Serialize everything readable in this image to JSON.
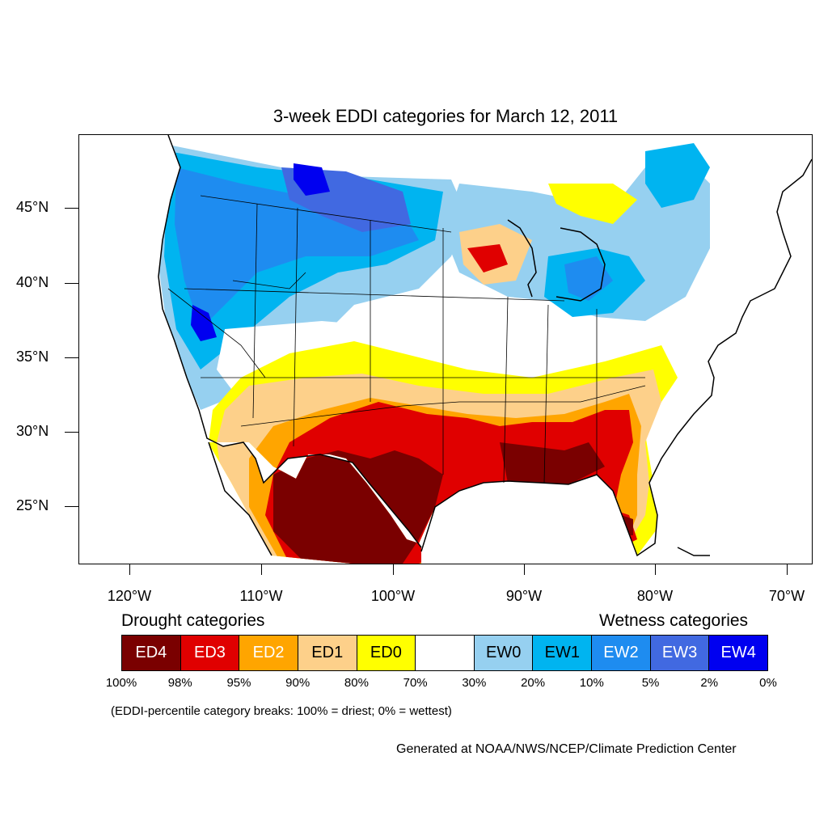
{
  "title": "3-week EDDI categories for March 12, 2011",
  "axes": {
    "lat_labels": [
      "45°N",
      "40°N",
      "35°N",
      "30°N",
      "25°N"
    ],
    "lon_labels": [
      "120°W",
      "110°W",
      "100°W",
      "90°W",
      "80°W",
      "70°W"
    ]
  },
  "legend": {
    "drought_title": "Drought categories",
    "wetness_title": "Wetness categories",
    "categories": [
      {
        "label": "ED4",
        "color": "#7a0000",
        "text_color": "#ffffff"
      },
      {
        "label": "ED3",
        "color": "#e00000",
        "text_color": "#ffffff"
      },
      {
        "label": "ED2",
        "color": "#ffa500",
        "text_color": "#ffffff"
      },
      {
        "label": "ED1",
        "color": "#fdd08a",
        "text_color": "#000000"
      },
      {
        "label": "ED0",
        "color": "#ffff00",
        "text_color": "#000000"
      },
      {
        "label": "",
        "color": "#ffffff",
        "text_color": "#000000"
      },
      {
        "label": "EW0",
        "color": "#96d0f0",
        "text_color": "#000000"
      },
      {
        "label": "EW1",
        "color": "#00b4f0",
        "text_color": "#000000"
      },
      {
        "label": "EW2",
        "color": "#1e8cf0",
        "text_color": "#ffffff"
      },
      {
        "label": "EW3",
        "color": "#4169e1",
        "text_color": "#ffffff"
      },
      {
        "label": "EW4",
        "color": "#0000f0",
        "text_color": "#ffffff"
      }
    ],
    "percentiles": [
      "100%",
      "98%",
      "95%",
      "90%",
      "80%",
      "70%",
      "30%",
      "20%",
      "10%",
      "5%",
      "2%",
      "0%"
    ]
  },
  "note": "(EDDI-percentile category breaks: 100% = driest; 0% = wettest)",
  "credit": "Generated at NOAA/NWS/NCEP/Climate Prediction Center"
}
